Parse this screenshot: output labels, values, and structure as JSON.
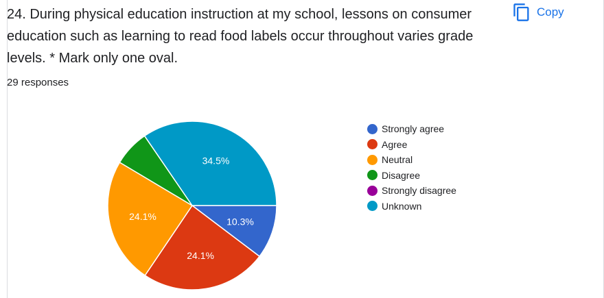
{
  "question": {
    "title": "24.  During physical education instruction at my school,  lessons on consumer education such as learning to read food labels occur throughout varies grade levels. * Mark only one oval.",
    "response_count": "29 responses"
  },
  "copy_button": {
    "label": "Copy",
    "icon": "copy-icon",
    "color": "#1a73e8"
  },
  "chart_data": {
    "type": "pie",
    "categories": [
      "Strongly agree",
      "Agree",
      "Neutral",
      "Disagree",
      "Strongly disagree",
      "Unknown"
    ],
    "values": [
      10.3,
      24.1,
      24.1,
      6.9,
      0,
      34.5
    ],
    "data_labels": [
      "10.3%",
      "24.1%",
      "24.1%",
      "",
      "",
      "34.5%"
    ],
    "colors": [
      "#3366cc",
      "#dc3912",
      "#ff9900",
      "#109618",
      "#990099",
      "#0099c6"
    ],
    "legend_position": "right"
  }
}
